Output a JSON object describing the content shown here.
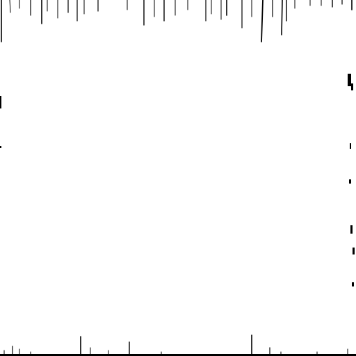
{
  "image": {
    "background_color": "#ffffff",
    "ink_color": "#000000",
    "description_visible_text": ""
  }
}
